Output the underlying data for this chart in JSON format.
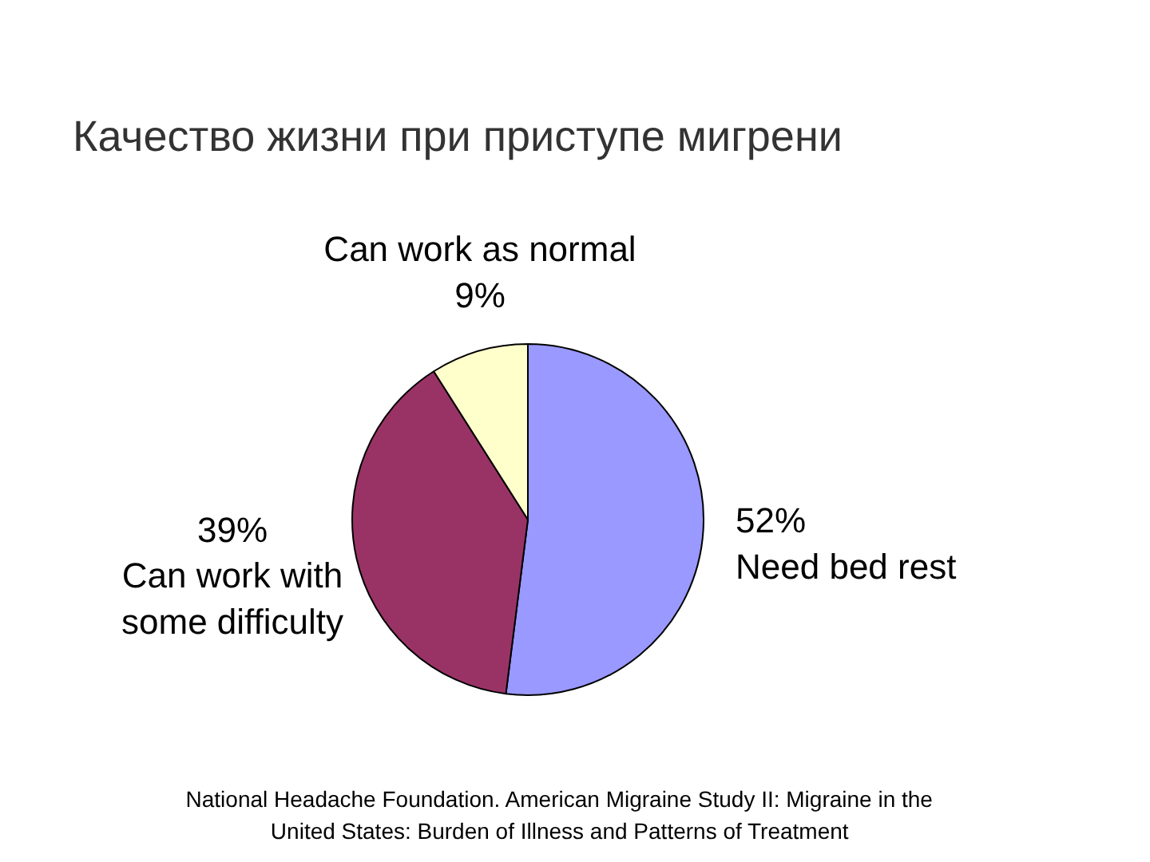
{
  "chart_data": {
    "type": "pie",
    "title": "Качество жизни при приступе мигрени",
    "categories": [
      "Need bed rest",
      "Can work with some difficulty",
      "Can work as normal"
    ],
    "values": [
      52,
      39,
      9
    ],
    "colors": [
      "#9999ff",
      "#993366",
      "#ffffcc"
    ],
    "value_labels": [
      "52%",
      "39%",
      "9%"
    ],
    "legend": false,
    "annotations": [
      "National Headache Foundation. American Migraine Study II: Migraine in the United States: Burden of Illness and Patterns of Treatment"
    ]
  }
}
